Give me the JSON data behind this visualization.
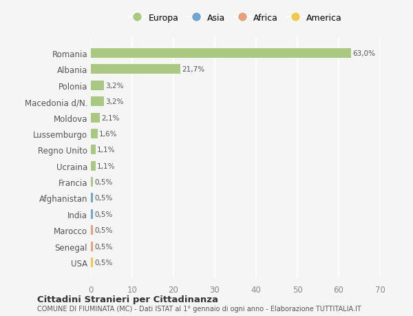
{
  "countries": [
    "Romania",
    "Albania",
    "Polonia",
    "Macedonia d/N.",
    "Moldova",
    "Lussemburgo",
    "Regno Unito",
    "Ucraina",
    "Francia",
    "Afghanistan",
    "India",
    "Marocco",
    "Senegal",
    "USA"
  ],
  "values": [
    63.0,
    21.7,
    3.2,
    3.2,
    2.1,
    1.6,
    1.1,
    1.1,
    0.5,
    0.5,
    0.5,
    0.5,
    0.5,
    0.5
  ],
  "labels": [
    "63,0%",
    "21,7%",
    "3,2%",
    "3,2%",
    "2,1%",
    "1,6%",
    "1,1%",
    "1,1%",
    "0,5%",
    "0,5%",
    "0,5%",
    "0,5%",
    "0,5%",
    "0,5%"
  ],
  "bar_colors": [
    "#a8c97f",
    "#a8c97f",
    "#a8c97f",
    "#a8c97f",
    "#a8c97f",
    "#a8c97f",
    "#a8c97f",
    "#a8c97f",
    "#a8c97f",
    "#6ea6d0",
    "#6ea6d0",
    "#e8a07a",
    "#e8a07a",
    "#f0c84a"
  ],
  "legend_labels": [
    "Europa",
    "Asia",
    "Africa",
    "America"
  ],
  "legend_colors": [
    "#a8c97f",
    "#6ea6d0",
    "#e8a07a",
    "#f0c84a"
  ],
  "xlim": [
    0,
    70
  ],
  "xticks": [
    0,
    10,
    20,
    30,
    40,
    50,
    60,
    70
  ],
  "background_color": "#f5f5f5",
  "grid_color": "#ffffff",
  "title": "Cittadini Stranieri per Cittadinanza",
  "subtitle": "COMUNE DI FIUMINATA (MC) - Dati ISTAT al 1° gennaio di ogni anno - Elaborazione TUTTITALIA.IT"
}
